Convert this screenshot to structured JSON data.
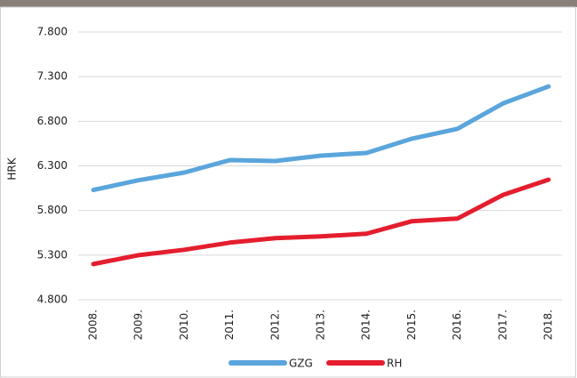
{
  "chart_data": {
    "type": "line",
    "y_label": "HRK",
    "categories": [
      "2008.",
      "2009.",
      "2010.",
      "2011.",
      "2012.",
      "2013.",
      "2014.",
      "2015.",
      "2016.",
      "2017.",
      "2018."
    ],
    "series": [
      {
        "name": "GZG",
        "color": "#5aa5dc",
        "values": [
          6030,
          6140,
          6225,
          6365,
          6355,
          6415,
          6445,
          6605,
          6715,
          7000,
          7190
        ]
      },
      {
        "name": "RH",
        "color": "#e41e2e",
        "values": [
          5200,
          5300,
          5360,
          5440,
          5490,
          5510,
          5540,
          5680,
          5710,
          5975,
          6145
        ]
      }
    ],
    "ylim": [
      4800,
      7800
    ],
    "yticks": [
      {
        "value": 4800,
        "label": "4.800"
      },
      {
        "value": 5300,
        "label": "5.300"
      },
      {
        "value": 5800,
        "label": "5.800"
      },
      {
        "value": 6300,
        "label": "6.300"
      },
      {
        "value": 6800,
        "label": "6.800"
      },
      {
        "value": 7300,
        "label": "7.300"
      },
      {
        "value": 7800,
        "label": "7.800"
      }
    ],
    "grid": true
  }
}
